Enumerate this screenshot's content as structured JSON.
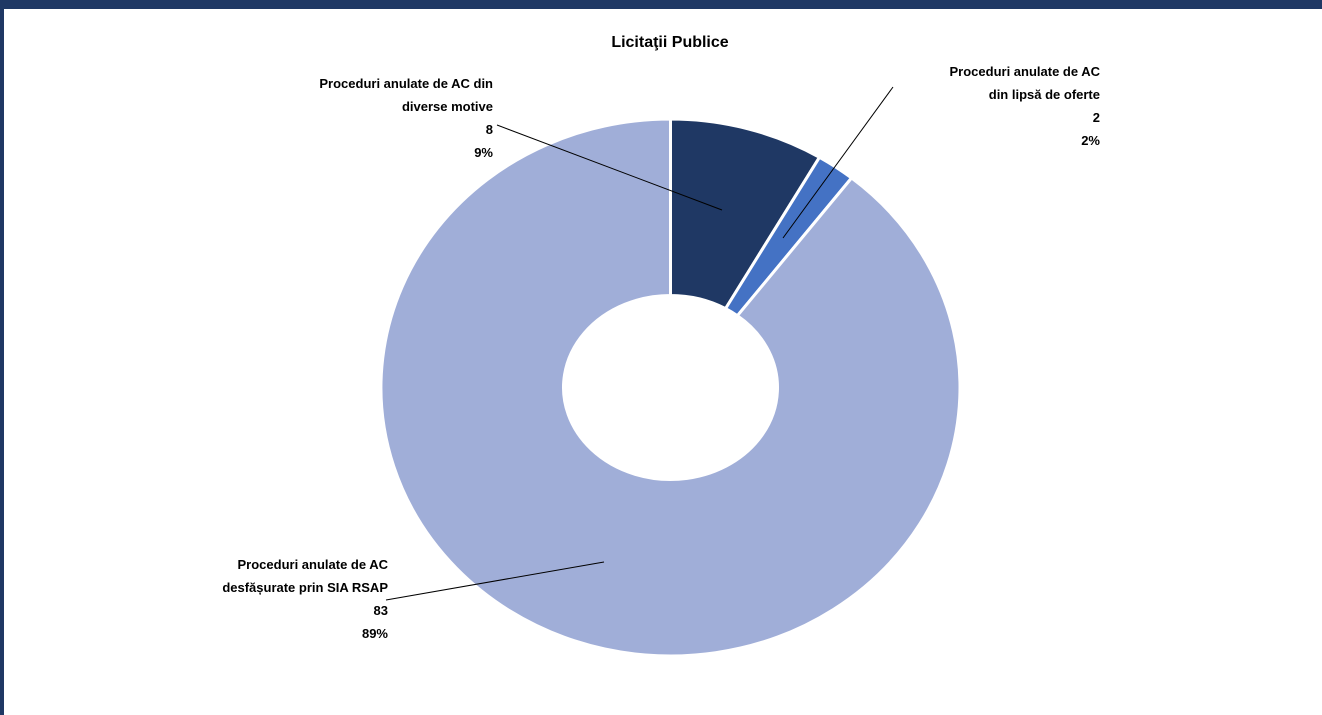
{
  "chart_data": {
    "type": "donut",
    "title": "Licitaţii Publice",
    "categories": [
      "Proceduri anulate de AC din diverse motive",
      "Proceduri anulate de AC din lipsă de oferte",
      "Proceduri anulate de AC desfășurate prin SIA RSAP"
    ],
    "values": [
      8,
      2,
      83
    ],
    "percent_labels": [
      "9%",
      "2%",
      "89%"
    ],
    "colors": [
      "#1f3864",
      "#4472c4",
      "#a0aed8"
    ]
  }
}
